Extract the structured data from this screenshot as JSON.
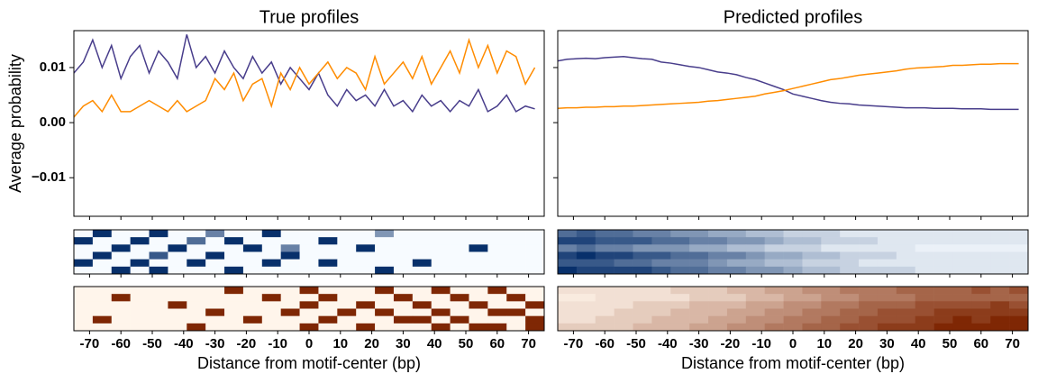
{
  "chart_data": [
    {
      "type": "line",
      "title": "True profiles",
      "y_label": "Average probability",
      "x_label": "Distance from motif-center (bp)",
      "x": [
        -75,
        -72,
        -69,
        -66,
        -63,
        -60,
        -57,
        -54,
        -51,
        -48,
        -45,
        -42,
        -39,
        -36,
        -33,
        -30,
        -27,
        -24,
        -21,
        -18,
        -15,
        -12,
        -9,
        -6,
        -3,
        0,
        3,
        6,
        9,
        12,
        15,
        18,
        21,
        24,
        27,
        30,
        33,
        36,
        39,
        42,
        45,
        48,
        51,
        54,
        57,
        60,
        63,
        66,
        69,
        72
      ],
      "series": [
        {
          "color": "#483d8b",
          "values": [
            0.009,
            0.011,
            0.015,
            0.01,
            0.014,
            0.008,
            0.012,
            0.014,
            0.009,
            0.013,
            0.011,
            0.008,
            0.016,
            0.01,
            0.012,
            0.009,
            0.013,
            0.01,
            0.008,
            0.012,
            0.009,
            0.011,
            0.007,
            0.01,
            0.008,
            0.006,
            0.009,
            0.005,
            0.003,
            0.006,
            0.004,
            0.005,
            0.003,
            0.006,
            0.003,
            0.004,
            0.002,
            0.005,
            0.003,
            0.004,
            0.002,
            0.004,
            0.003,
            0.006,
            0.002,
            0.003,
            0.005,
            0.002,
            0.003,
            0.0025
          ]
        },
        {
          "color": "#ff8c00",
          "values": [
            0.001,
            0.003,
            0.004,
            0.002,
            0.005,
            0.002,
            0.002,
            0.003,
            0.004,
            0.003,
            0.002,
            0.004,
            0.002,
            0.003,
            0.004,
            0.008,
            0.006,
            0.009,
            0.004,
            0.007,
            0.008,
            0.003,
            0.009,
            0.006,
            0.01,
            0.007,
            0.009,
            0.011,
            0.008,
            0.01,
            0.009,
            0.006,
            0.012,
            0.007,
            0.009,
            0.011,
            0.008,
            0.012,
            0.007,
            0.01,
            0.013,
            0.009,
            0.015,
            0.01,
            0.014,
            0.009,
            0.013,
            0.012,
            0.007,
            0.01
          ]
        }
      ],
      "xlim": [
        -75,
        75
      ],
      "ylim": [
        -0.017,
        0.0167
      ],
      "xticks": [
        -70,
        -60,
        -50,
        -40,
        -30,
        -20,
        -10,
        0,
        10,
        20,
        30,
        40,
        50,
        60,
        70
      ],
      "yticks": [
        {
          "value": -0.01,
          "label": "−0.01"
        },
        {
          "value": 0,
          "label": "0.00"
        },
        0.01
      ],
      "heatmaps": [
        {
          "colors": [
            "#f7fbff",
            "#08306b"
          ],
          "values": [
            [
              0,
              1,
              0,
              0,
              1,
              0,
              0,
              0.6,
              0,
              0,
              1,
              0,
              0,
              0,
              0,
              0,
              0.5,
              0,
              0,
              0,
              0,
              0,
              0,
              0,
              0
            ],
            [
              1,
              0,
              0,
              1,
              0,
              0,
              0.7,
              0,
              1,
              0,
              0,
              0,
              0,
              1,
              0,
              0,
              0,
              0,
              0,
              0,
              0,
              0,
              0,
              0,
              0
            ],
            [
              0,
              0,
              1,
              0,
              0,
              1,
              0,
              0,
              0,
              1,
              0,
              0.6,
              0,
              0,
              0,
              1,
              0,
              0,
              0,
              0,
              0,
              1,
              0,
              0,
              0
            ],
            [
              0,
              1,
              0,
              0,
              0.8,
              0,
              0,
              1,
              0,
              0,
              0,
              1,
              0,
              0,
              0,
              0,
              0,
              0,
              0,
              0,
              0,
              0,
              0,
              0,
              0
            ],
            [
              1,
              0,
              0,
              1,
              0,
              0,
              1,
              0,
              0,
              0,
              1,
              0,
              0,
              1,
              0,
              0,
              0,
              0,
              1,
              0,
              0,
              0,
              0,
              0,
              0
            ],
            [
              0,
              0,
              1,
              0,
              1,
              0,
              0,
              0,
              1,
              0,
              0,
              0,
              0,
              0,
              0,
              0,
              1,
              0,
              0,
              0,
              0,
              0,
              0,
              0,
              0
            ]
          ]
        },
        {
          "colors": [
            "#fff5eb",
            "#7f2704"
          ],
          "values": [
            [
              0,
              0,
              0,
              0,
              0,
              0,
              0,
              0,
              1,
              0,
              0,
              0,
              1,
              0,
              0,
              0,
              1,
              0,
              0,
              1,
              0,
              0,
              1,
              0,
              0
            ],
            [
              0,
              0,
              1,
              0,
              0,
              0,
              0,
              0,
              0,
              0,
              1,
              0,
              0,
              1,
              0,
              0,
              0,
              1,
              0,
              0,
              1,
              0,
              0,
              1,
              0
            ],
            [
              0,
              0,
              0,
              0,
              0,
              1,
              0,
              0,
              0,
              0,
              0,
              0,
              1,
              0,
              0,
              1,
              0,
              0,
              1,
              0,
              0,
              1,
              0,
              0,
              1
            ],
            [
              0,
              0,
              0,
              0,
              0,
              0,
              0,
              1,
              0,
              0,
              0,
              1,
              0,
              0,
              1,
              0,
              1,
              0,
              0,
              1,
              0,
              0,
              1,
              1,
              0
            ],
            [
              0,
              1,
              0,
              0,
              0,
              0,
              0,
              0,
              0,
              1,
              0,
              0,
              0,
              1,
              0,
              0,
              0,
              1,
              1,
              0,
              1,
              0,
              0,
              0,
              1
            ],
            [
              0,
              0,
              0,
              0,
              0,
              0,
              1,
              0,
              0,
              0,
              0,
              0,
              1,
              0,
              0,
              1,
              0,
              0,
              0,
              1,
              0,
              1,
              1,
              0,
              1
            ]
          ]
        }
      ]
    },
    {
      "type": "line",
      "title": "Predicted profiles",
      "x_label": "Distance from motif-center (bp)",
      "x": [
        -75,
        -72,
        -69,
        -66,
        -63,
        -60,
        -57,
        -54,
        -51,
        -48,
        -45,
        -42,
        -39,
        -36,
        -33,
        -30,
        -27,
        -24,
        -21,
        -18,
        -15,
        -12,
        -9,
        -6,
        -3,
        0,
        3,
        6,
        9,
        12,
        15,
        18,
        21,
        24,
        27,
        30,
        33,
        36,
        39,
        42,
        45,
        48,
        51,
        54,
        57,
        60,
        63,
        66,
        69,
        72
      ],
      "series": [
        {
          "color": "#483d8b",
          "values": [
            0.0112,
            0.0115,
            0.0116,
            0.0117,
            0.0116,
            0.0118,
            0.0119,
            0.012,
            0.0118,
            0.0116,
            0.0115,
            0.011,
            0.0108,
            0.0105,
            0.0102,
            0.01,
            0.0096,
            0.0092,
            0.009,
            0.0087,
            0.0082,
            0.0078,
            0.0072,
            0.0066,
            0.006,
            0.0052,
            0.0048,
            0.0044,
            0.004,
            0.0037,
            0.0035,
            0.0034,
            0.0032,
            0.0031,
            0.003,
            0.0029,
            0.0028,
            0.0027,
            0.0027,
            0.0027,
            0.0026,
            0.0026,
            0.0026,
            0.0025,
            0.0025,
            0.0025,
            0.0024,
            0.0024,
            0.0024,
            0.0024
          ]
        },
        {
          "color": "#ff8c00",
          "values": [
            0.0026,
            0.0027,
            0.0027,
            0.0028,
            0.0028,
            0.0029,
            0.0029,
            0.003,
            0.003,
            0.0031,
            0.0032,
            0.0033,
            0.0034,
            0.0035,
            0.0036,
            0.0037,
            0.0039,
            0.004,
            0.0042,
            0.0044,
            0.0046,
            0.0048,
            0.0052,
            0.0055,
            0.0058,
            0.0062,
            0.0066,
            0.007,
            0.0074,
            0.0078,
            0.008,
            0.0083,
            0.0086,
            0.0088,
            0.009,
            0.0092,
            0.0094,
            0.0097,
            0.0099,
            0.01,
            0.0101,
            0.0102,
            0.0104,
            0.0104,
            0.0105,
            0.0106,
            0.0106,
            0.0107,
            0.0107,
            0.0107
          ]
        }
      ],
      "xlim": [
        -75,
        75
      ],
      "ylim": [
        -0.017,
        0.0167
      ],
      "xticks": [
        -70,
        -60,
        -50,
        -40,
        -30,
        -20,
        -10,
        0,
        10,
        20,
        30,
        40,
        50,
        60,
        70
      ],
      "heatmaps": [
        {
          "colors": [
            "#f7fbff",
            "#08306b"
          ],
          "values": [
            [
              0.7,
              0.8,
              0.7,
              0.7,
              0.6,
              0.6,
              0.5,
              0.5,
              0.4,
              0.4,
              0.3,
              0.3,
              0.2,
              0.2,
              0.2,
              0.1,
              0.1,
              0.1,
              0.1,
              0.1,
              0.1,
              0.1,
              0.1,
              0.1,
              0.1
            ],
            [
              0.9,
              0.9,
              0.8,
              0.8,
              0.8,
              0.7,
              0.7,
              0.6,
              0.6,
              0.5,
              0.5,
              0.4,
              0.3,
              0.3,
              0.2,
              0.2,
              0.2,
              0.1,
              0.1,
              0.1,
              0.1,
              0.1,
              0.1,
              0.1,
              0.1
            ],
            [
              0.6,
              0.7,
              0.6,
              0.6,
              0.5,
              0.5,
              0.5,
              0.4,
              0.4,
              0.3,
              0.3,
              0.2,
              0.2,
              0.2,
              0.1,
              0.1,
              0.1,
              0.1,
              0.1,
              0.05,
              0.05,
              0.05,
              0.05,
              0.05,
              0.05
            ],
            [
              0.9,
              1,
              0.9,
              0.9,
              0.8,
              0.8,
              0.7,
              0.7,
              0.6,
              0.6,
              0.5,
              0.4,
              0.4,
              0.3,
              0.3,
              0.2,
              0.2,
              0.2,
              0.1,
              0.1,
              0.1,
              0.1,
              0.1,
              0.1,
              0.1
            ],
            [
              0.8,
              0.8,
              0.8,
              0.7,
              0.7,
              0.6,
              0.6,
              0.6,
              0.5,
              0.4,
              0.4,
              0.3,
              0.3,
              0.2,
              0.2,
              0.2,
              0.1,
              0.1,
              0.1,
              0.1,
              0.1,
              0.1,
              0.1,
              0.1,
              0.1
            ],
            [
              1,
              0.9,
              0.9,
              0.9,
              0.9,
              0.8,
              0.7,
              0.7,
              0.6,
              0.6,
              0.5,
              0.5,
              0.4,
              0.3,
              0.3,
              0.2,
              0.2,
              0.2,
              0.2,
              0.1,
              0.1,
              0.1,
              0.1,
              0.1,
              0.1
            ]
          ]
        },
        {
          "colors": [
            "#fff5eb",
            "#7f2704"
          ],
          "values": [
            [
              0.1,
              0.1,
              0.1,
              0.1,
              0.1,
              0.1,
              0.2,
              0.2,
              0.2,
              0.3,
              0.3,
              0.4,
              0.4,
              0.5,
              0.5,
              0.6,
              0.6,
              0.6,
              0.7,
              0.7,
              0.7,
              0.7,
              0.8,
              0.7,
              0.8
            ],
            [
              0.05,
              0.05,
              0.1,
              0.1,
              0.1,
              0.1,
              0.1,
              0.2,
              0.2,
              0.2,
              0.3,
              0.3,
              0.4,
              0.4,
              0.5,
              0.5,
              0.6,
              0.6,
              0.6,
              0.7,
              0.7,
              0.7,
              0.7,
              0.7,
              0.7
            ],
            [
              0.1,
              0.1,
              0.1,
              0.1,
              0.2,
              0.2,
              0.2,
              0.3,
              0.3,
              0.3,
              0.4,
              0.4,
              0.5,
              0.5,
              0.6,
              0.6,
              0.7,
              0.7,
              0.7,
              0.8,
              0.8,
              0.8,
              0.8,
              0.9,
              0.8
            ],
            [
              0.1,
              0.1,
              0.1,
              0.2,
              0.2,
              0.2,
              0.3,
              0.3,
              0.3,
              0.4,
              0.4,
              0.5,
              0.5,
              0.6,
              0.6,
              0.7,
              0.7,
              0.8,
              0.8,
              0.8,
              0.9,
              0.9,
              0.9,
              0.9,
              0.9
            ],
            [
              0.1,
              0.1,
              0.2,
              0.2,
              0.2,
              0.3,
              0.3,
              0.3,
              0.4,
              0.4,
              0.5,
              0.5,
              0.6,
              0.6,
              0.7,
              0.7,
              0.8,
              0.8,
              0.8,
              0.9,
              0.9,
              1,
              0.9,
              1,
              1
            ],
            [
              0.2,
              0.2,
              0.2,
              0.2,
              0.3,
              0.3,
              0.3,
              0.4,
              0.4,
              0.5,
              0.5,
              0.6,
              0.6,
              0.7,
              0.7,
              0.8,
              0.8,
              0.9,
              0.9,
              0.9,
              1,
              1,
              1,
              1,
              1
            ]
          ]
        }
      ]
    }
  ]
}
